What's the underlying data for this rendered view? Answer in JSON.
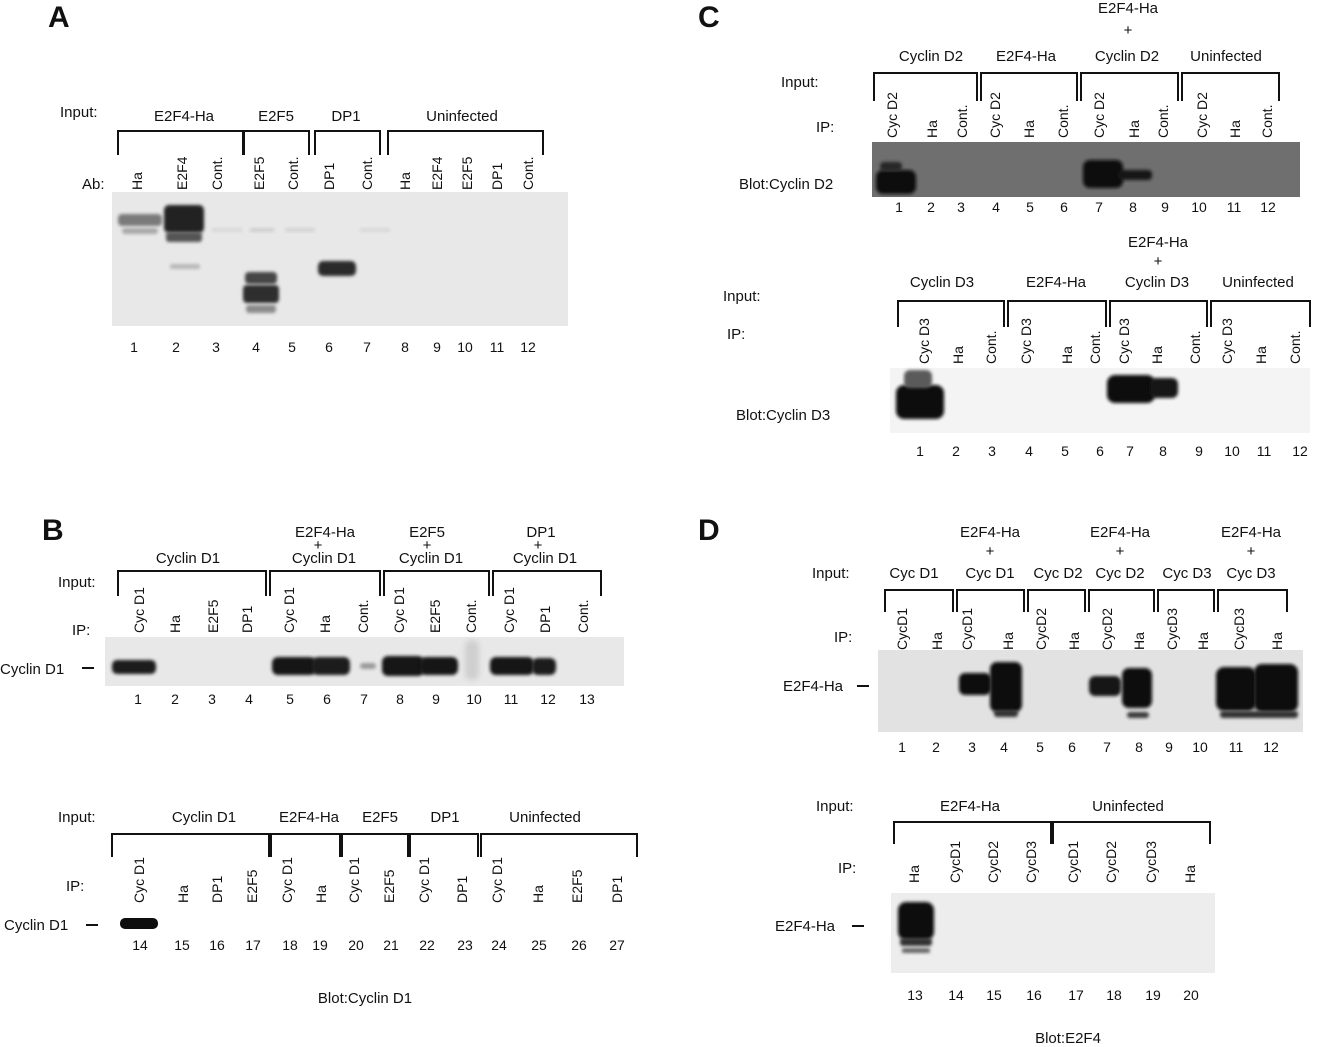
{
  "figure": {
    "panels": [
      {
        "id": "A",
        "letter": "A",
        "row_labels": [
          "Input:",
          "Ab:"
        ],
        "groups": [
          {
            "label": "E2F4-Ha",
            "lanes": [
              "Ha",
              "E2F4",
              "Cont."
            ]
          },
          {
            "label": "E2F5",
            "lanes": [
              "E2F5",
              "Cont."
            ]
          },
          {
            "label": "DP1",
            "lanes": [
              "DP1",
              "Cont."
            ]
          },
          {
            "label": "Uninfected",
            "lanes": [
              "Ha",
              "E2F4",
              "E2F5",
              "DP1",
              "Cont."
            ]
          }
        ],
        "lane_numbers": [
          "1",
          "2",
          "3",
          "4",
          "5",
          "6",
          "7",
          "8",
          "9",
          "10",
          "11",
          "12"
        ]
      },
      {
        "id": "B1",
        "letter": "B",
        "row_labels": [
          "Input:",
          "IP:"
        ],
        "band_label": "Cyclin D1",
        "groups": [
          {
            "label": "Cyclin D1",
            "lanes": [
              "Cyc D1",
              "Ha",
              "E2F5",
              "DP1"
            ]
          },
          {
            "label": "E2F4-Ha",
            "plus": "+",
            "label2": "Cyclin D1",
            "lanes": [
              "Cyc D1",
              "Ha",
              "Cont."
            ]
          },
          {
            "label": "E2F5",
            "plus": "+",
            "label2": "Cyclin D1",
            "lanes": [
              "Cyc D1",
              "E2F5",
              "Cont."
            ]
          },
          {
            "label": "DP1",
            "plus": "+",
            "label2": "Cyclin D1",
            "lanes": [
              "Cyc D1",
              "DP1",
              "Cont."
            ]
          }
        ],
        "lane_numbers": [
          "1",
          "2",
          "3",
          "4",
          "5",
          "6",
          "7",
          "8",
          "9",
          "10",
          "11",
          "12",
          "13"
        ]
      },
      {
        "id": "B2",
        "row_labels": [
          "Input:",
          "IP:"
        ],
        "band_label": "Cyclin D1",
        "groups": [
          {
            "label": "Cyclin D1",
            "lanes": [
              "Cyc D1",
              "Ha",
              "DP1",
              "E2F5"
            ]
          },
          {
            "label": "E2F4-Ha",
            "lanes": [
              "Cyc D1",
              "Ha"
            ]
          },
          {
            "label": "E2F5",
            "lanes": [
              "Cyc D1",
              "E2F5"
            ]
          },
          {
            "label": "DP1",
            "lanes": [
              "Cyc D1",
              "DP1"
            ]
          },
          {
            "label": "Uninfected",
            "lanes": [
              "Cyc D1",
              "Ha",
              "E2F5",
              "DP1"
            ]
          }
        ],
        "lane_numbers": [
          "14",
          "15",
          "16",
          "17",
          "18",
          "19",
          "20",
          "21",
          "22",
          "23",
          "24",
          "25",
          "26",
          "27"
        ],
        "blot": "Blot:Cyclin D1"
      },
      {
        "id": "C1",
        "letter": "C",
        "row_labels": [
          "Input:",
          "IP:"
        ],
        "blot": "Blot:Cyclin D2",
        "groups": [
          {
            "label": "Cyclin D2",
            "lanes": [
              "Cyc D2",
              "Ha",
              "Cont."
            ]
          },
          {
            "label": "E2F4-Ha",
            "lanes": [
              "Cyc D2",
              "Ha",
              "Cont."
            ]
          },
          {
            "label": "E2F4-Ha",
            "plus": "+",
            "label2": "Cyclin D2",
            "lanes": [
              "Cyc D2",
              "Ha",
              "Cont."
            ]
          },
          {
            "label": "Uninfected",
            "lanes": [
              "Cyc D2",
              "Ha",
              "Cont."
            ]
          }
        ],
        "lane_numbers": [
          "1",
          "2",
          "3",
          "4",
          "5",
          "6",
          "7",
          "8",
          "9",
          "10",
          "11",
          "12"
        ]
      },
      {
        "id": "C2",
        "row_labels": [
          "Input:",
          "IP:"
        ],
        "blot": "Blot:Cyclin D3",
        "groups": [
          {
            "label": "Cyclin D3",
            "lanes": [
              "Cyc D3",
              "Ha",
              "Cont."
            ]
          },
          {
            "label": "E2F4-Ha",
            "lanes": [
              "Cyc D3",
              "Ha",
              "Cont."
            ]
          },
          {
            "label": "E2F4-Ha",
            "plus": "+",
            "label2": "Cyclin D3",
            "lanes": [
              "Cyc D3",
              "Ha",
              "Cont."
            ]
          },
          {
            "label": "Uninfected",
            "lanes": [
              "Cyc D3",
              "Ha",
              "Cont."
            ]
          }
        ],
        "lane_numbers": [
          "1",
          "2",
          "3",
          "4",
          "5",
          "6",
          "7",
          "8",
          "9",
          "10",
          "11",
          "12"
        ]
      },
      {
        "id": "D1",
        "letter": "D",
        "row_labels": [
          "Input:",
          "IP:"
        ],
        "band_label": "E2F4-Ha",
        "groups": [
          {
            "label": "Cyc D1",
            "lanes": [
              "CycD1",
              "Ha"
            ]
          },
          {
            "label": "E2F4-Ha",
            "plus": "+",
            "label2": "Cyc D1",
            "lanes": [
              "CycD1",
              "Ha"
            ]
          },
          {
            "label": "Cyc D2",
            "lanes": [
              "CycD2",
              "Ha"
            ]
          },
          {
            "label": "E2F4-Ha",
            "plus": "+",
            "label2": "Cyc D2",
            "lanes": [
              "CycD2",
              "Ha"
            ]
          },
          {
            "label": "Cyc D3",
            "lanes": [
              "CycD3",
              "Ha"
            ]
          },
          {
            "label": "E2F4-Ha",
            "plus": "+",
            "label2": "Cyc D3",
            "lanes": [
              "CycD3",
              "Ha"
            ]
          }
        ],
        "lane_numbers": [
          "1",
          "2",
          "3",
          "4",
          "5",
          "6",
          "7",
          "8",
          "9",
          "10",
          "11",
          "12"
        ]
      },
      {
        "id": "D2",
        "row_labels": [
          "Input:",
          "IP:"
        ],
        "band_label": "E2F4-Ha",
        "groups": [
          {
            "label": "E2F4-Ha",
            "lanes": [
              "Ha",
              "CycD1",
              "CycD2",
              "CycD3"
            ]
          },
          {
            "label": "Uninfected",
            "lanes": [
              "CycD1",
              "CycD2",
              "CycD3",
              "Ha"
            ]
          }
        ],
        "lane_numbers": [
          "13",
          "14",
          "15",
          "16",
          "17",
          "18",
          "19",
          "20"
        ],
        "blot": "Blot:E2F4"
      }
    ]
  }
}
